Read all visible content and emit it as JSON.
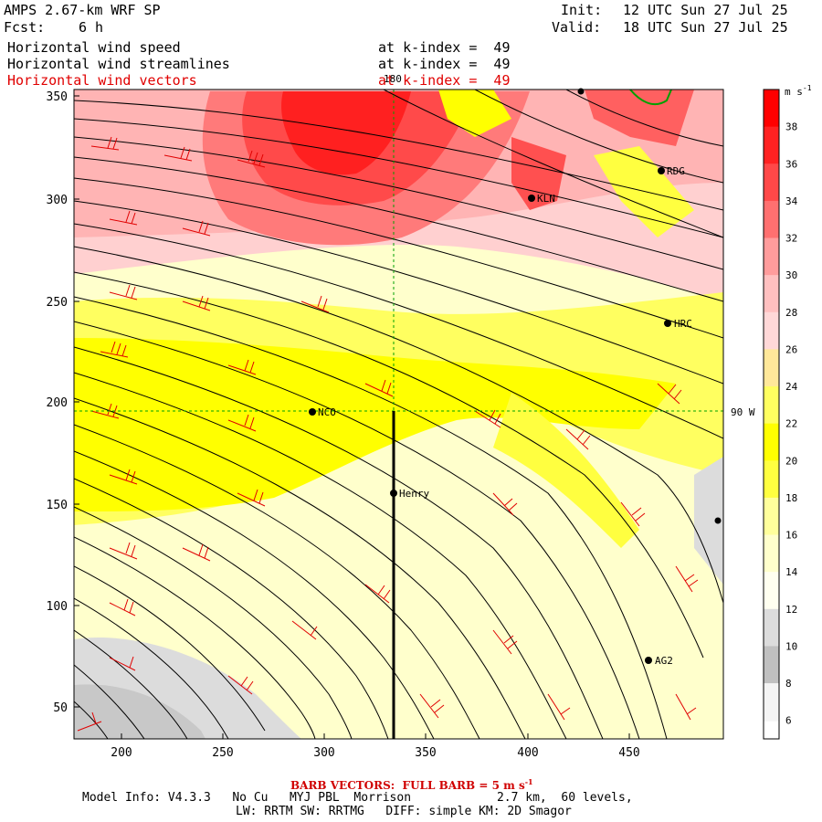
{
  "header": {
    "model_title": "AMPS 2.67-km WRF SP",
    "forecast_label": "Fcst:",
    "forecast_value": "6 h",
    "init_label": "Init:",
    "init_value": "12 UTC Sun 27 Jul 25",
    "valid_label": "Valid:",
    "valid_value": "18 UTC Sun 27 Jul 25"
  },
  "fields": [
    {
      "name": "Horizontal wind speed",
      "level": "at k-index =  49"
    },
    {
      "name": "Horizontal wind streamlines",
      "level": "at k-index =  49"
    },
    {
      "name": "Horizontal wind vectors",
      "level": "at k-index =  49"
    }
  ],
  "map": {
    "x_ticks": [
      "200",
      "250",
      "300",
      "350",
      "400",
      "450"
    ],
    "y_ticks": [
      "350",
      "300",
      "250",
      "200",
      "150",
      "100",
      "50"
    ],
    "meridian_label": "180",
    "parallel_label": "90 W",
    "stations": [
      {
        "name": "KLN",
        "x": 401,
        "y": 300
      },
      {
        "name": "RDG",
        "x": 465,
        "y": 314
      },
      {
        "name": "HRC",
        "x": 468,
        "y": 239
      },
      {
        "name": "NCO",
        "x": 293,
        "y": 195
      },
      {
        "name": "Henry",
        "x": 335,
        "y": 155
      },
      {
        "name": "AG2",
        "x": 460,
        "y": 72
      }
    ]
  },
  "colorbar": {
    "unit": "m s",
    "unit_exp": "-1",
    "labels": [
      "38",
      "36",
      "34",
      "32",
      "30",
      "28",
      "26",
      "24",
      "22",
      "20",
      "18",
      "16",
      "14",
      "12",
      "10",
      "8",
      "6"
    ],
    "colors": [
      "#ff0000",
      "#ff2222",
      "#ff4848",
      "#ff7070",
      "#ff9c9c",
      "#ffc0c0",
      "#ffd8d8",
      "#ffe89a",
      "#ffff60",
      "#ffff00",
      "#ffff40",
      "#ffff9c",
      "#ffffcc",
      "#fffff0",
      "#dcdcdc",
      "#c0c0c0",
      "#f4f4f4"
    ]
  },
  "footer": {
    "barb_note": "BARB VECTORS:  FULL BARB = 5 m s",
    "barb_exp": "-1",
    "model_info": "Model Info: V4.3.3   No Cu   MYJ PBL  Morrison            2.7 km,  60 levels,",
    "physics": "LW: RRTM SW: RRTMG   DIFF: simple KM: 2D Smagor"
  }
}
